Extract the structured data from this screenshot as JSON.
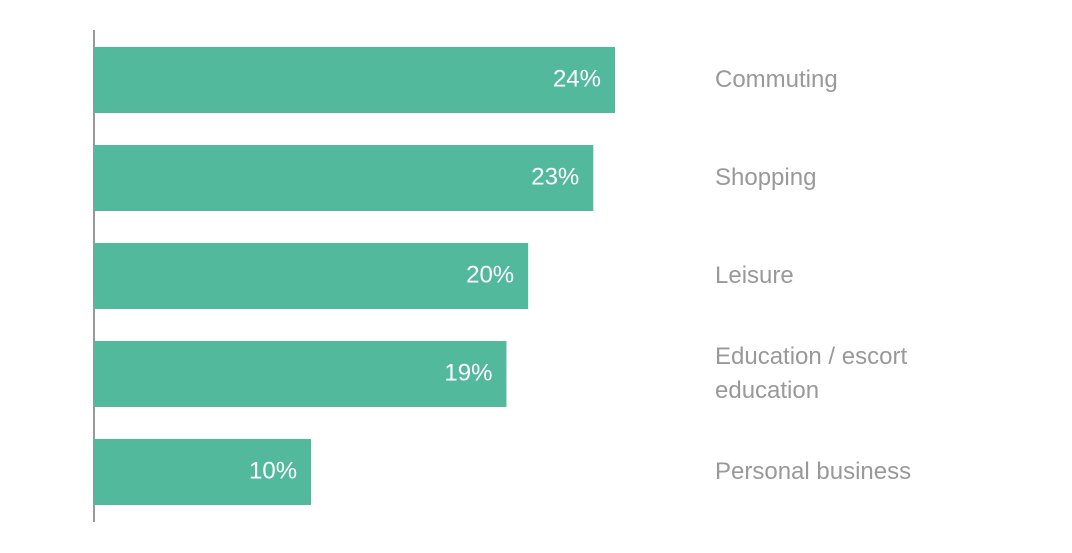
{
  "chart_data": {
    "type": "bar",
    "orientation": "horizontal",
    "categories": [
      "Commuting",
      "Shopping",
      "Leisure",
      "Education / escort education",
      "Personal business"
    ],
    "values": [
      24,
      23,
      20,
      19,
      10
    ],
    "value_labels": [
      "24%",
      "23%",
      "20%",
      "19%",
      "10%"
    ],
    "color": "#52b99d"
  }
}
